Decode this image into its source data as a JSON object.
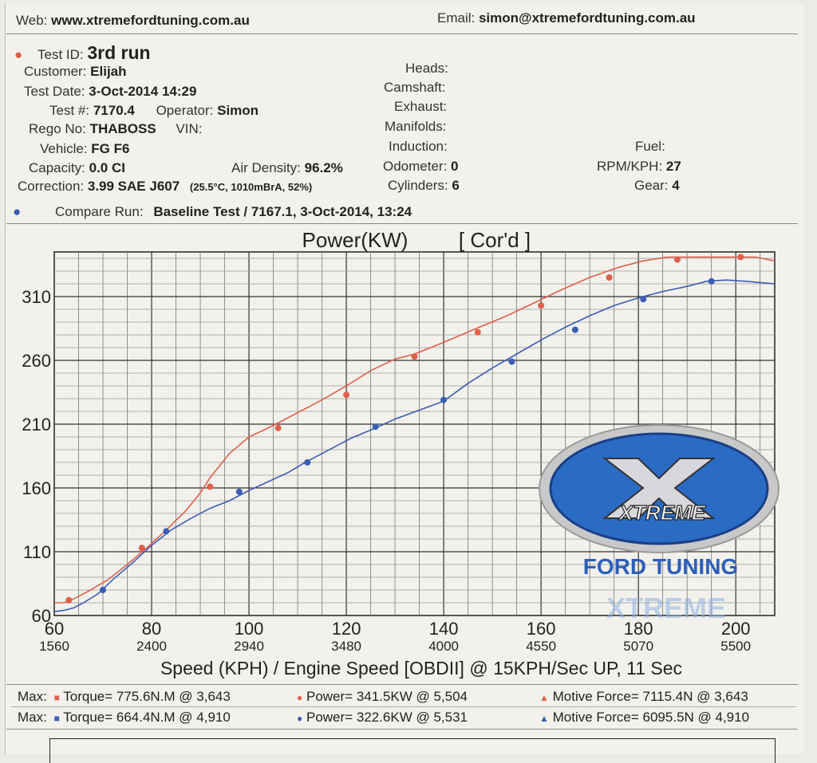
{
  "header": {
    "web_label": "Web:",
    "web_value": "www.xtremefordtuning.com.au",
    "email_label": "Email:",
    "email_value": "simon@xtremefordtuning.com.au"
  },
  "info": {
    "test_id_label": "Test ID:",
    "test_id": "3rd run",
    "customer_label": "Customer:",
    "customer": "Elijah",
    "test_date_label": "Test Date:",
    "test_date": "3-Oct-2014 14:29",
    "test_num_label": "Test #:",
    "test_num": "7170.4",
    "operator_label": "Operator:",
    "operator": "Simon",
    "rego_label": "Rego No:",
    "rego": "THABOSS",
    "vin_label": "VIN:",
    "vehicle_label": "Vehicle:",
    "vehicle": "FG F6",
    "capacity_label": "Capacity:",
    "capacity": "0.0 CI",
    "air_density_label": "Air Density:",
    "air_density": "96.2%",
    "correction_label": "Correction:",
    "correction": "3.99 SAE J607",
    "correction_detail": "(25.5°C, 1010mBrA, 52%)",
    "heads_label": "Heads:",
    "camshaft_label": "Camshaft:",
    "exhaust_label": "Exhaust:",
    "manifolds_label": "Manifolds:",
    "induction_label": "Induction:",
    "odometer_label": "Odometer:",
    "odometer": "0",
    "cylinders_label": "Cylinders:",
    "cylinders": "6",
    "fuel_label": "Fuel:",
    "rpm_kph_label": "RPM/KPH:",
    "rpm_kph": "27",
    "gear_label": "Gear:",
    "gear": "4",
    "compare_label": "Compare Run:",
    "compare_value": "Baseline Test / 7167.1,   3-Oct-2014,    13:24"
  },
  "chart_data": {
    "type": "line",
    "title": "Power(KW)",
    "subtitle": "[ Cor'd ]",
    "xlabel": "Speed (KPH) / Engine Speed [OBDII] @ 15KPH/Sec UP, 11 Sec",
    "xlim": [
      60,
      208
    ],
    "ylim": [
      60,
      345
    ],
    "x_ticks": [
      60,
      80,
      100,
      120,
      140,
      160,
      180,
      200
    ],
    "x_tick_labels": [
      "60",
      "80",
      "100",
      "120",
      "140",
      "160",
      "180",
      "200"
    ],
    "rpm_tick_labels": [
      "1560",
      "2400",
      "2940",
      "3480",
      "4000",
      "4550",
      "5070",
      "5500"
    ],
    "y_ticks": [
      60,
      110,
      160,
      210,
      260,
      310
    ],
    "series": [
      {
        "color": "#e0604a",
        "x": [
          60,
          62,
          64,
          67,
          71,
          75,
          79,
          83,
          87,
          90,
          92,
          96,
          100,
          105,
          110,
          115,
          120,
          125,
          130,
          134,
          138,
          143,
          148,
          153,
          158,
          164,
          170,
          176,
          181,
          186,
          191,
          196,
          200,
          204,
          208
        ],
        "y": [
          70,
          70,
          73,
          79,
          88,
          100,
          113,
          127,
          142,
          156,
          168,
          187,
          200,
          209,
          219,
          229,
          240,
          252,
          261,
          265,
          271,
          279,
          287,
          295,
          304,
          315,
          325,
          333,
          338,
          341,
          341,
          341,
          341,
          341,
          338
        ],
        "markers_x": [
          63,
          78,
          92,
          106,
          120,
          134,
          147,
          160,
          174,
          188,
          201
        ],
        "markers_y": [
          72,
          113,
          161,
          207,
          233,
          263,
          282,
          303,
          325,
          339,
          341
        ]
      },
      {
        "color": "#3a5db5",
        "x": [
          60,
          62,
          64,
          66,
          69,
          72,
          76,
          80,
          84,
          88,
          92,
          96,
          100,
          104,
          108,
          112,
          117,
          121,
          126,
          130,
          135,
          140,
          145,
          150,
          155,
          160,
          165,
          170,
          175,
          180,
          185,
          190,
          194,
          198,
          202,
          205,
          208
        ],
        "y": [
          63,
          64,
          66,
          70,
          77,
          88,
          101,
          115,
          127,
          136,
          144,
          150,
          158,
          165,
          172,
          181,
          191,
          199,
          207,
          214,
          221,
          228,
          242,
          254,
          265,
          276,
          286,
          295,
          303,
          309,
          314,
          318,
          322,
          323,
          322,
          321,
          320
        ],
        "markers_x": [
          70,
          83,
          98,
          112,
          126,
          140,
          154,
          167,
          181,
          195
        ],
        "markers_y": [
          80,
          126,
          157,
          180,
          208,
          229,
          259,
          284,
          308,
          322
        ]
      }
    ]
  },
  "logo": {
    "line1": "XTREME",
    "line2": "FORD TUNING",
    "line3": "XTREME"
  },
  "footer": {
    "row1_max": "Max:",
    "row1_torque": "Torque= 775.6N.M @ 3,643",
    "row1_power": "Power= 341.5KW @ 5,504",
    "row1_force": "Motive Force= 7115.4N @ 3,643",
    "row2_max": "Max:",
    "row2_torque": "Torque= 664.4N.M @ 4,910",
    "row2_power": "Power= 322.6KW @ 5,531",
    "row2_force": "Motive Force= 6095.5N @ 4,910"
  }
}
